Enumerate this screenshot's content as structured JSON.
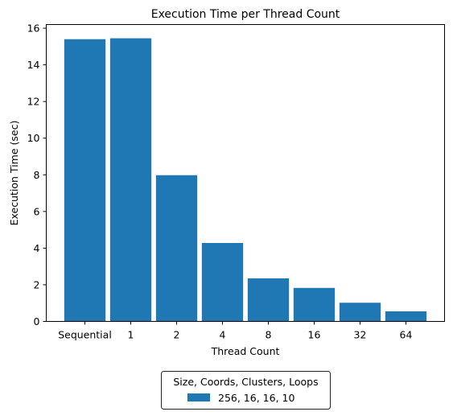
{
  "chart_data": {
    "type": "bar",
    "title": "Execution Time per Thread Count",
    "xlabel": "Thread Count",
    "ylabel": "Execution Time (sec)",
    "categories": [
      "Sequential",
      "1",
      "2",
      "4",
      "8",
      "16",
      "32",
      "64"
    ],
    "series": [
      {
        "name": "256, 16, 16, 10",
        "values": [
          15.4,
          15.45,
          7.98,
          4.28,
          2.35,
          1.83,
          1.02,
          0.55
        ],
        "color": "#1f77b4"
      }
    ],
    "ylim": [
      0,
      16.2
    ],
    "yticks": [
      0,
      2,
      4,
      6,
      8,
      10,
      12,
      14,
      16
    ],
    "grid": false,
    "legend": {
      "title": "Size, Coords, Clusters, Loops",
      "placement": "below chart"
    }
  }
}
